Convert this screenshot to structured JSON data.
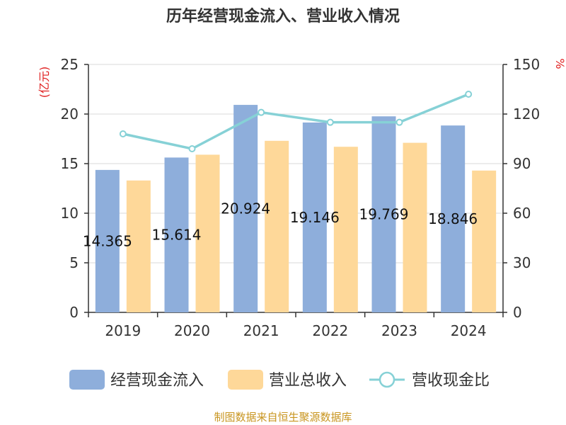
{
  "title": "历年经营现金流入、营业收入情况",
  "source": "制图数据来自恒生聚源数据库",
  "colors": {
    "cash_inflow": "#8eaedb",
    "revenue": "#fed899",
    "ratio": "#86d1d6",
    "grid": "#d9d9d9",
    "axis": "#333333"
  },
  "chart_data": {
    "type": "bar",
    "title": "历年经营现金流入、营业收入情况",
    "categories": [
      "2019",
      "2020",
      "2021",
      "2022",
      "2023",
      "2024"
    ],
    "y_left": {
      "label": "(亿元)",
      "range": [
        0,
        25
      ],
      "ticks": [
        0,
        5,
        10,
        15,
        20,
        25
      ]
    },
    "y_right": {
      "label": "%",
      "range": [
        0,
        150
      ],
      "ticks": [
        0,
        30,
        60,
        90,
        120,
        150
      ]
    },
    "grid": true,
    "legend": "bottom",
    "series": [
      {
        "name": "经营现金流入",
        "type": "bar",
        "axis": "left",
        "values": [
          14.365,
          15.614,
          20.924,
          19.146,
          19.769,
          18.846
        ],
        "labels": [
          "14.365",
          "15.614",
          "20.924",
          "19.146",
          "19.769",
          "18.846"
        ]
      },
      {
        "name": "营业总收入",
        "type": "bar",
        "axis": "left",
        "values": [
          13.3,
          15.9,
          17.3,
          16.7,
          17.1,
          14.3
        ]
      },
      {
        "name": "营收现金比",
        "type": "line",
        "axis": "right",
        "values": [
          108,
          99,
          121,
          115,
          115,
          132
        ]
      }
    ]
  }
}
